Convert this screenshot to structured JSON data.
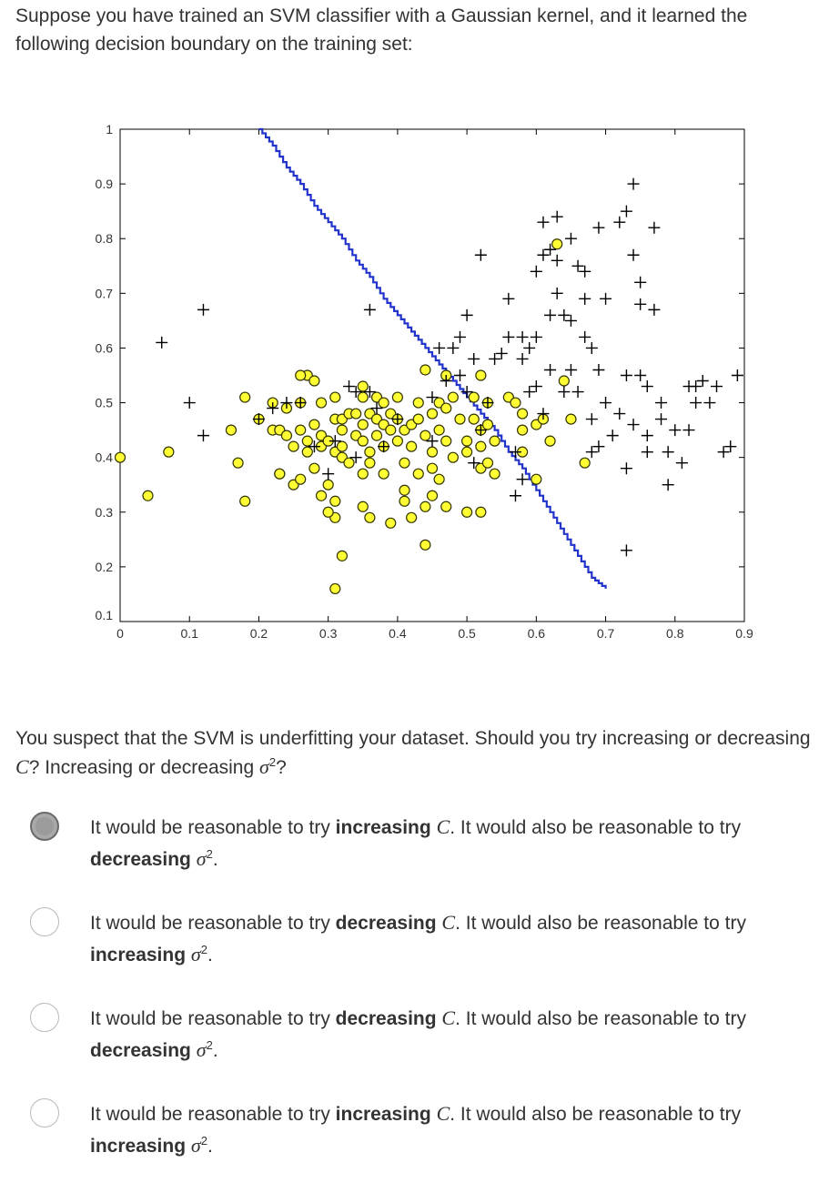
{
  "question": {
    "intro": "Suppose you have trained an SVM classifier with a Gaussian kernel, and it learned the following decision boundary on the training set:",
    "prompt_before_c": "You suspect that the SVM is underfitting your dataset. Should you try increasing or decreasing ",
    "c_symbol": "C",
    "prompt_middle": "? Increasing or decreasing ",
    "sigma_symbol": "σ",
    "sigma_exp": "2",
    "prompt_end": "?"
  },
  "options": [
    {
      "selected": true,
      "p1": "It would be reasonable to try ",
      "b1": "increasing",
      "c": "C",
      "p2": ". It would also be reasonable to try ",
      "b2": "decreasing",
      "sigma": "σ",
      "exp": "2",
      "end": "."
    },
    {
      "selected": false,
      "p1": "It would be reasonable to try ",
      "b1": "decreasing",
      "c": "C",
      "p2": ". It would also be reasonable to try ",
      "b2": "increasing",
      "sigma": "σ",
      "exp": "2",
      "end": "."
    },
    {
      "selected": false,
      "p1": "It would be reasonable to try ",
      "b1": "decreasing",
      "c": "C",
      "p2": ". It would also be reasonable to try ",
      "b2": "decreasing",
      "sigma": "σ",
      "exp": "2",
      "end": "."
    },
    {
      "selected": false,
      "p1": "It would be reasonable to try ",
      "b1": "increasing",
      "c": "C",
      "p2": ". It would also be reasonable to try ",
      "b2": "increasing",
      "sigma": "σ",
      "exp": "2",
      "end": "."
    }
  ],
  "chart_data": {
    "type": "scatter",
    "title": "",
    "xlabel": "",
    "ylabel": "",
    "xlim": [
      0,
      0.9
    ],
    "ylim": [
      0.1,
      1.0
    ],
    "x_ticks": [
      "0",
      "0.1",
      "0.2",
      "0.3",
      "0.4",
      "0.5",
      "0.6",
      "0.7",
      "0.8",
      "0.9"
    ],
    "y_ticks": [
      "0.1",
      "0.2",
      "0.3",
      "0.4",
      "0.5",
      "0.6",
      "0.7",
      "0.8",
      "0.9",
      "1"
    ],
    "colors": {
      "negative_fill": "#ffff33",
      "negative_edge": "#333300",
      "positive": "#000000",
      "boundary": "#2233cc"
    },
    "series": [
      {
        "marker": "circle",
        "points": [
          [
            0.0,
            0.4
          ],
          [
            0.04,
            0.33
          ],
          [
            0.07,
            0.41
          ],
          [
            0.16,
            0.45
          ],
          [
            0.17,
            0.39
          ],
          [
            0.18,
            0.51
          ],
          [
            0.18,
            0.32
          ],
          [
            0.2,
            0.47
          ],
          [
            0.22,
            0.5
          ],
          [
            0.22,
            0.45
          ],
          [
            0.23,
            0.37
          ],
          [
            0.23,
            0.45
          ],
          [
            0.23,
            0.37
          ],
          [
            0.24,
            0.44
          ],
          [
            0.24,
            0.49
          ],
          [
            0.25,
            0.35
          ],
          [
            0.25,
            0.42
          ],
          [
            0.26,
            0.5
          ],
          [
            0.26,
            0.45
          ],
          [
            0.26,
            0.36
          ],
          [
            0.27,
            0.55
          ],
          [
            0.27,
            0.43
          ],
          [
            0.27,
            0.41
          ],
          [
            0.28,
            0.54
          ],
          [
            0.28,
            0.46
          ],
          [
            0.28,
            0.38
          ],
          [
            0.29,
            0.5
          ],
          [
            0.29,
            0.44
          ],
          [
            0.29,
            0.42
          ],
          [
            0.29,
            0.33
          ],
          [
            0.3,
            0.43
          ],
          [
            0.3,
            0.35
          ],
          [
            0.31,
            0.51
          ],
          [
            0.31,
            0.47
          ],
          [
            0.31,
            0.41
          ],
          [
            0.31,
            0.32
          ],
          [
            0.31,
            0.29
          ],
          [
            0.32,
            0.47
          ],
          [
            0.32,
            0.45
          ],
          [
            0.32,
            0.42
          ],
          [
            0.32,
            0.4
          ],
          [
            0.3,
            0.3
          ],
          [
            0.31,
            0.16
          ],
          [
            0.32,
            0.22
          ],
          [
            0.33,
            0.48
          ],
          [
            0.33,
            0.39
          ],
          [
            0.34,
            0.48
          ],
          [
            0.34,
            0.44
          ],
          [
            0.35,
            0.53
          ],
          [
            0.35,
            0.51
          ],
          [
            0.35,
            0.46
          ],
          [
            0.35,
            0.43
          ],
          [
            0.35,
            0.37
          ],
          [
            0.35,
            0.31
          ],
          [
            0.36,
            0.48
          ],
          [
            0.36,
            0.41
          ],
          [
            0.36,
            0.39
          ],
          [
            0.36,
            0.29
          ],
          [
            0.37,
            0.51
          ],
          [
            0.37,
            0.47
          ],
          [
            0.37,
            0.44
          ],
          [
            0.38,
            0.5
          ],
          [
            0.38,
            0.46
          ],
          [
            0.38,
            0.42
          ],
          [
            0.38,
            0.37
          ],
          [
            0.39,
            0.48
          ],
          [
            0.39,
            0.45
          ],
          [
            0.39,
            0.28
          ],
          [
            0.4,
            0.51
          ],
          [
            0.4,
            0.47
          ],
          [
            0.4,
            0.43
          ],
          [
            0.41,
            0.45
          ],
          [
            0.41,
            0.39
          ],
          [
            0.41,
            0.34
          ],
          [
            0.41,
            0.32
          ],
          [
            0.42,
            0.46
          ],
          [
            0.42,
            0.42
          ],
          [
            0.42,
            0.29
          ],
          [
            0.43,
            0.5
          ],
          [
            0.43,
            0.47
          ],
          [
            0.43,
            0.37
          ],
          [
            0.44,
            0.56
          ],
          [
            0.44,
            0.44
          ],
          [
            0.44,
            0.31
          ],
          [
            0.44,
            0.24
          ],
          [
            0.45,
            0.48
          ],
          [
            0.45,
            0.41
          ],
          [
            0.45,
            0.38
          ],
          [
            0.45,
            0.33
          ],
          [
            0.46,
            0.5
          ],
          [
            0.46,
            0.45
          ],
          [
            0.46,
            0.36
          ],
          [
            0.47,
            0.55
          ],
          [
            0.47,
            0.49
          ],
          [
            0.47,
            0.43
          ],
          [
            0.47,
            0.31
          ],
          [
            0.48,
            0.51
          ],
          [
            0.48,
            0.4
          ],
          [
            0.49,
            0.47
          ],
          [
            0.5,
            0.43
          ],
          [
            0.5,
            0.41
          ],
          [
            0.5,
            0.3
          ],
          [
            0.51,
            0.51
          ],
          [
            0.51,
            0.47
          ],
          [
            0.52,
            0.55
          ],
          [
            0.52,
            0.45
          ],
          [
            0.52,
            0.42
          ],
          [
            0.52,
            0.38
          ],
          [
            0.52,
            0.3
          ],
          [
            0.53,
            0.5
          ],
          [
            0.53,
            0.46
          ],
          [
            0.53,
            0.39
          ],
          [
            0.54,
            0.43
          ],
          [
            0.54,
            0.37
          ],
          [
            0.56,
            0.51
          ],
          [
            0.57,
            0.5
          ],
          [
            0.58,
            0.45
          ],
          [
            0.58,
            0.41
          ],
          [
            0.58,
            0.48
          ],
          [
            0.6,
            0.36
          ],
          [
            0.6,
            0.46
          ],
          [
            0.61,
            0.47
          ],
          [
            0.62,
            0.43
          ],
          [
            0.63,
            0.79
          ],
          [
            0.64,
            0.54
          ],
          [
            0.65,
            0.47
          ],
          [
            0.67,
            0.39
          ],
          [
            0.26,
            0.55
          ]
        ]
      },
      {
        "marker": "plus",
        "points": [
          [
            0.06,
            0.61
          ],
          [
            0.1,
            0.5
          ],
          [
            0.12,
            0.67
          ],
          [
            0.12,
            0.44
          ],
          [
            0.2,
            0.47
          ],
          [
            0.22,
            0.49
          ],
          [
            0.24,
            0.5
          ],
          [
            0.26,
            0.5
          ],
          [
            0.28,
            0.42
          ],
          [
            0.3,
            0.37
          ],
          [
            0.31,
            0.43
          ],
          [
            0.33,
            0.53
          ],
          [
            0.34,
            0.4
          ],
          [
            0.34,
            0.52
          ],
          [
            0.36,
            0.67
          ],
          [
            0.36,
            0.52
          ],
          [
            0.37,
            0.49
          ],
          [
            0.38,
            0.42
          ],
          [
            0.4,
            0.47
          ],
          [
            0.45,
            0.51
          ],
          [
            0.45,
            0.43
          ],
          [
            0.46,
            0.6
          ],
          [
            0.47,
            0.54
          ],
          [
            0.48,
            0.6
          ],
          [
            0.49,
            0.55
          ],
          [
            0.49,
            0.62
          ],
          [
            0.5,
            0.66
          ],
          [
            0.5,
            0.52
          ],
          [
            0.51,
            0.39
          ],
          [
            0.51,
            0.58
          ],
          [
            0.52,
            0.77
          ],
          [
            0.52,
            0.45
          ],
          [
            0.53,
            0.5
          ],
          [
            0.54,
            0.58
          ],
          [
            0.55,
            0.59
          ],
          [
            0.56,
            0.62
          ],
          [
            0.56,
            0.69
          ],
          [
            0.57,
            0.41
          ],
          [
            0.57,
            0.33
          ],
          [
            0.58,
            0.36
          ],
          [
            0.58,
            0.62
          ],
          [
            0.58,
            0.58
          ],
          [
            0.59,
            0.52
          ],
          [
            0.59,
            0.6
          ],
          [
            0.6,
            0.74
          ],
          [
            0.6,
            0.62
          ],
          [
            0.6,
            0.53
          ],
          [
            0.61,
            0.48
          ],
          [
            0.61,
            0.83
          ],
          [
            0.61,
            0.77
          ],
          [
            0.62,
            0.66
          ],
          [
            0.62,
            0.78
          ],
          [
            0.62,
            0.56
          ],
          [
            0.63,
            0.84
          ],
          [
            0.63,
            0.76
          ],
          [
            0.63,
            0.7
          ],
          [
            0.64,
            0.52
          ],
          [
            0.64,
            0.66
          ],
          [
            0.65,
            0.65
          ],
          [
            0.65,
            0.8
          ],
          [
            0.65,
            0.56
          ],
          [
            0.66,
            0.52
          ],
          [
            0.67,
            0.74
          ],
          [
            0.67,
            0.62
          ],
          [
            0.67,
            0.69
          ],
          [
            0.68,
            0.6
          ],
          [
            0.68,
            0.47
          ],
          [
            0.68,
            0.41
          ],
          [
            0.69,
            0.56
          ],
          [
            0.69,
            0.42
          ],
          [
            0.7,
            0.69
          ],
          [
            0.7,
            0.5
          ],
          [
            0.71,
            0.44
          ],
          [
            0.72,
            0.83
          ],
          [
            0.72,
            0.48
          ],
          [
            0.73,
            0.85
          ],
          [
            0.73,
            0.55
          ],
          [
            0.73,
            0.38
          ],
          [
            0.73,
            0.23
          ],
          [
            0.74,
            0.77
          ],
          [
            0.74,
            0.46
          ],
          [
            0.75,
            0.72
          ],
          [
            0.75,
            0.68
          ],
          [
            0.75,
            0.55
          ],
          [
            0.76,
            0.53
          ],
          [
            0.76,
            0.44
          ],
          [
            0.76,
            0.41
          ],
          [
            0.77,
            0.67
          ],
          [
            0.78,
            0.5
          ],
          [
            0.78,
            0.47
          ],
          [
            0.79,
            0.41
          ],
          [
            0.79,
            0.35
          ],
          [
            0.8,
            0.45
          ],
          [
            0.81,
            0.39
          ],
          [
            0.82,
            0.53
          ],
          [
            0.82,
            0.45
          ],
          [
            0.83,
            0.53
          ],
          [
            0.83,
            0.5
          ],
          [
            0.84,
            0.54
          ],
          [
            0.85,
            0.5
          ],
          [
            0.86,
            0.53
          ],
          [
            0.87,
            0.41
          ],
          [
            0.88,
            0.42
          ],
          [
            0.89,
            0.55
          ],
          [
            0.74,
            0.9
          ],
          [
            0.77,
            0.82
          ],
          [
            0.69,
            0.82
          ],
          [
            0.66,
            0.75
          ]
        ]
      }
    ],
    "boundary": [
      [
        0.2,
        1.0
      ],
      [
        0.22,
        0.97
      ],
      [
        0.24,
        0.93
      ],
      [
        0.26,
        0.9
      ],
      [
        0.28,
        0.86
      ],
      [
        0.3,
        0.83
      ],
      [
        0.32,
        0.8
      ],
      [
        0.34,
        0.76
      ],
      [
        0.36,
        0.73
      ],
      [
        0.38,
        0.69
      ],
      [
        0.4,
        0.66
      ],
      [
        0.42,
        0.63
      ],
      [
        0.44,
        0.6
      ],
      [
        0.46,
        0.57
      ],
      [
        0.48,
        0.54
      ],
      [
        0.5,
        0.51
      ],
      [
        0.52,
        0.48
      ],
      [
        0.54,
        0.45
      ],
      [
        0.56,
        0.41
      ],
      [
        0.58,
        0.38
      ],
      [
        0.6,
        0.34
      ],
      [
        0.62,
        0.3
      ],
      [
        0.64,
        0.26
      ],
      [
        0.66,
        0.22
      ],
      [
        0.68,
        0.18
      ],
      [
        0.7,
        0.16
      ]
    ]
  }
}
